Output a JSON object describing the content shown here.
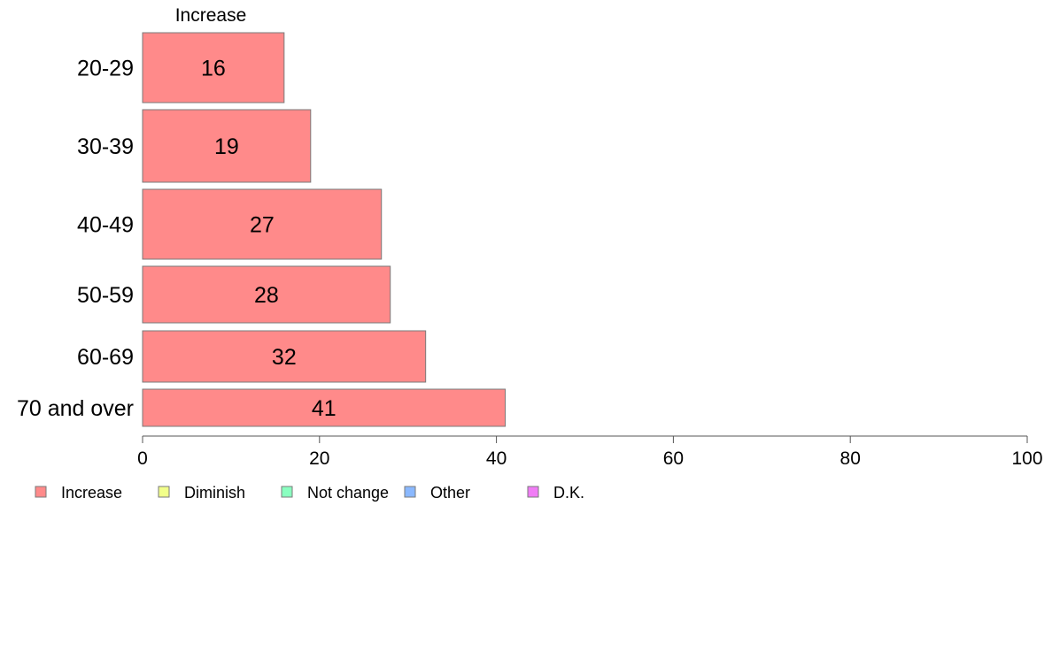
{
  "chart_data": {
    "type": "bar",
    "orientation": "horizontal",
    "categories": [
      "20-29",
      "30-39",
      "40-49",
      "50-59",
      "60-69",
      "70 and over"
    ],
    "series": [
      {
        "name": "Increase",
        "values": [
          16,
          19,
          27,
          28,
          32,
          41
        ],
        "color": "#ff8a8a"
      }
    ],
    "xlim": [
      0,
      100
    ],
    "xticks": [
      0,
      20,
      40,
      60,
      80,
      100
    ],
    "title": "",
    "xlabel": "",
    "ylabel": "",
    "grid": false,
    "legend": {
      "placement": "bottom-left",
      "entries": [
        {
          "label": "Increase",
          "color": "#ff8a8a"
        },
        {
          "label": "Diminish",
          "color": "#f2ff8a"
        },
        {
          "label": "Not change",
          "color": "#8affc0"
        },
        {
          "label": "Other",
          "color": "#8ab8ff"
        },
        {
          "label": "D.K.",
          "color": "#f07cf5"
        }
      ]
    }
  }
}
